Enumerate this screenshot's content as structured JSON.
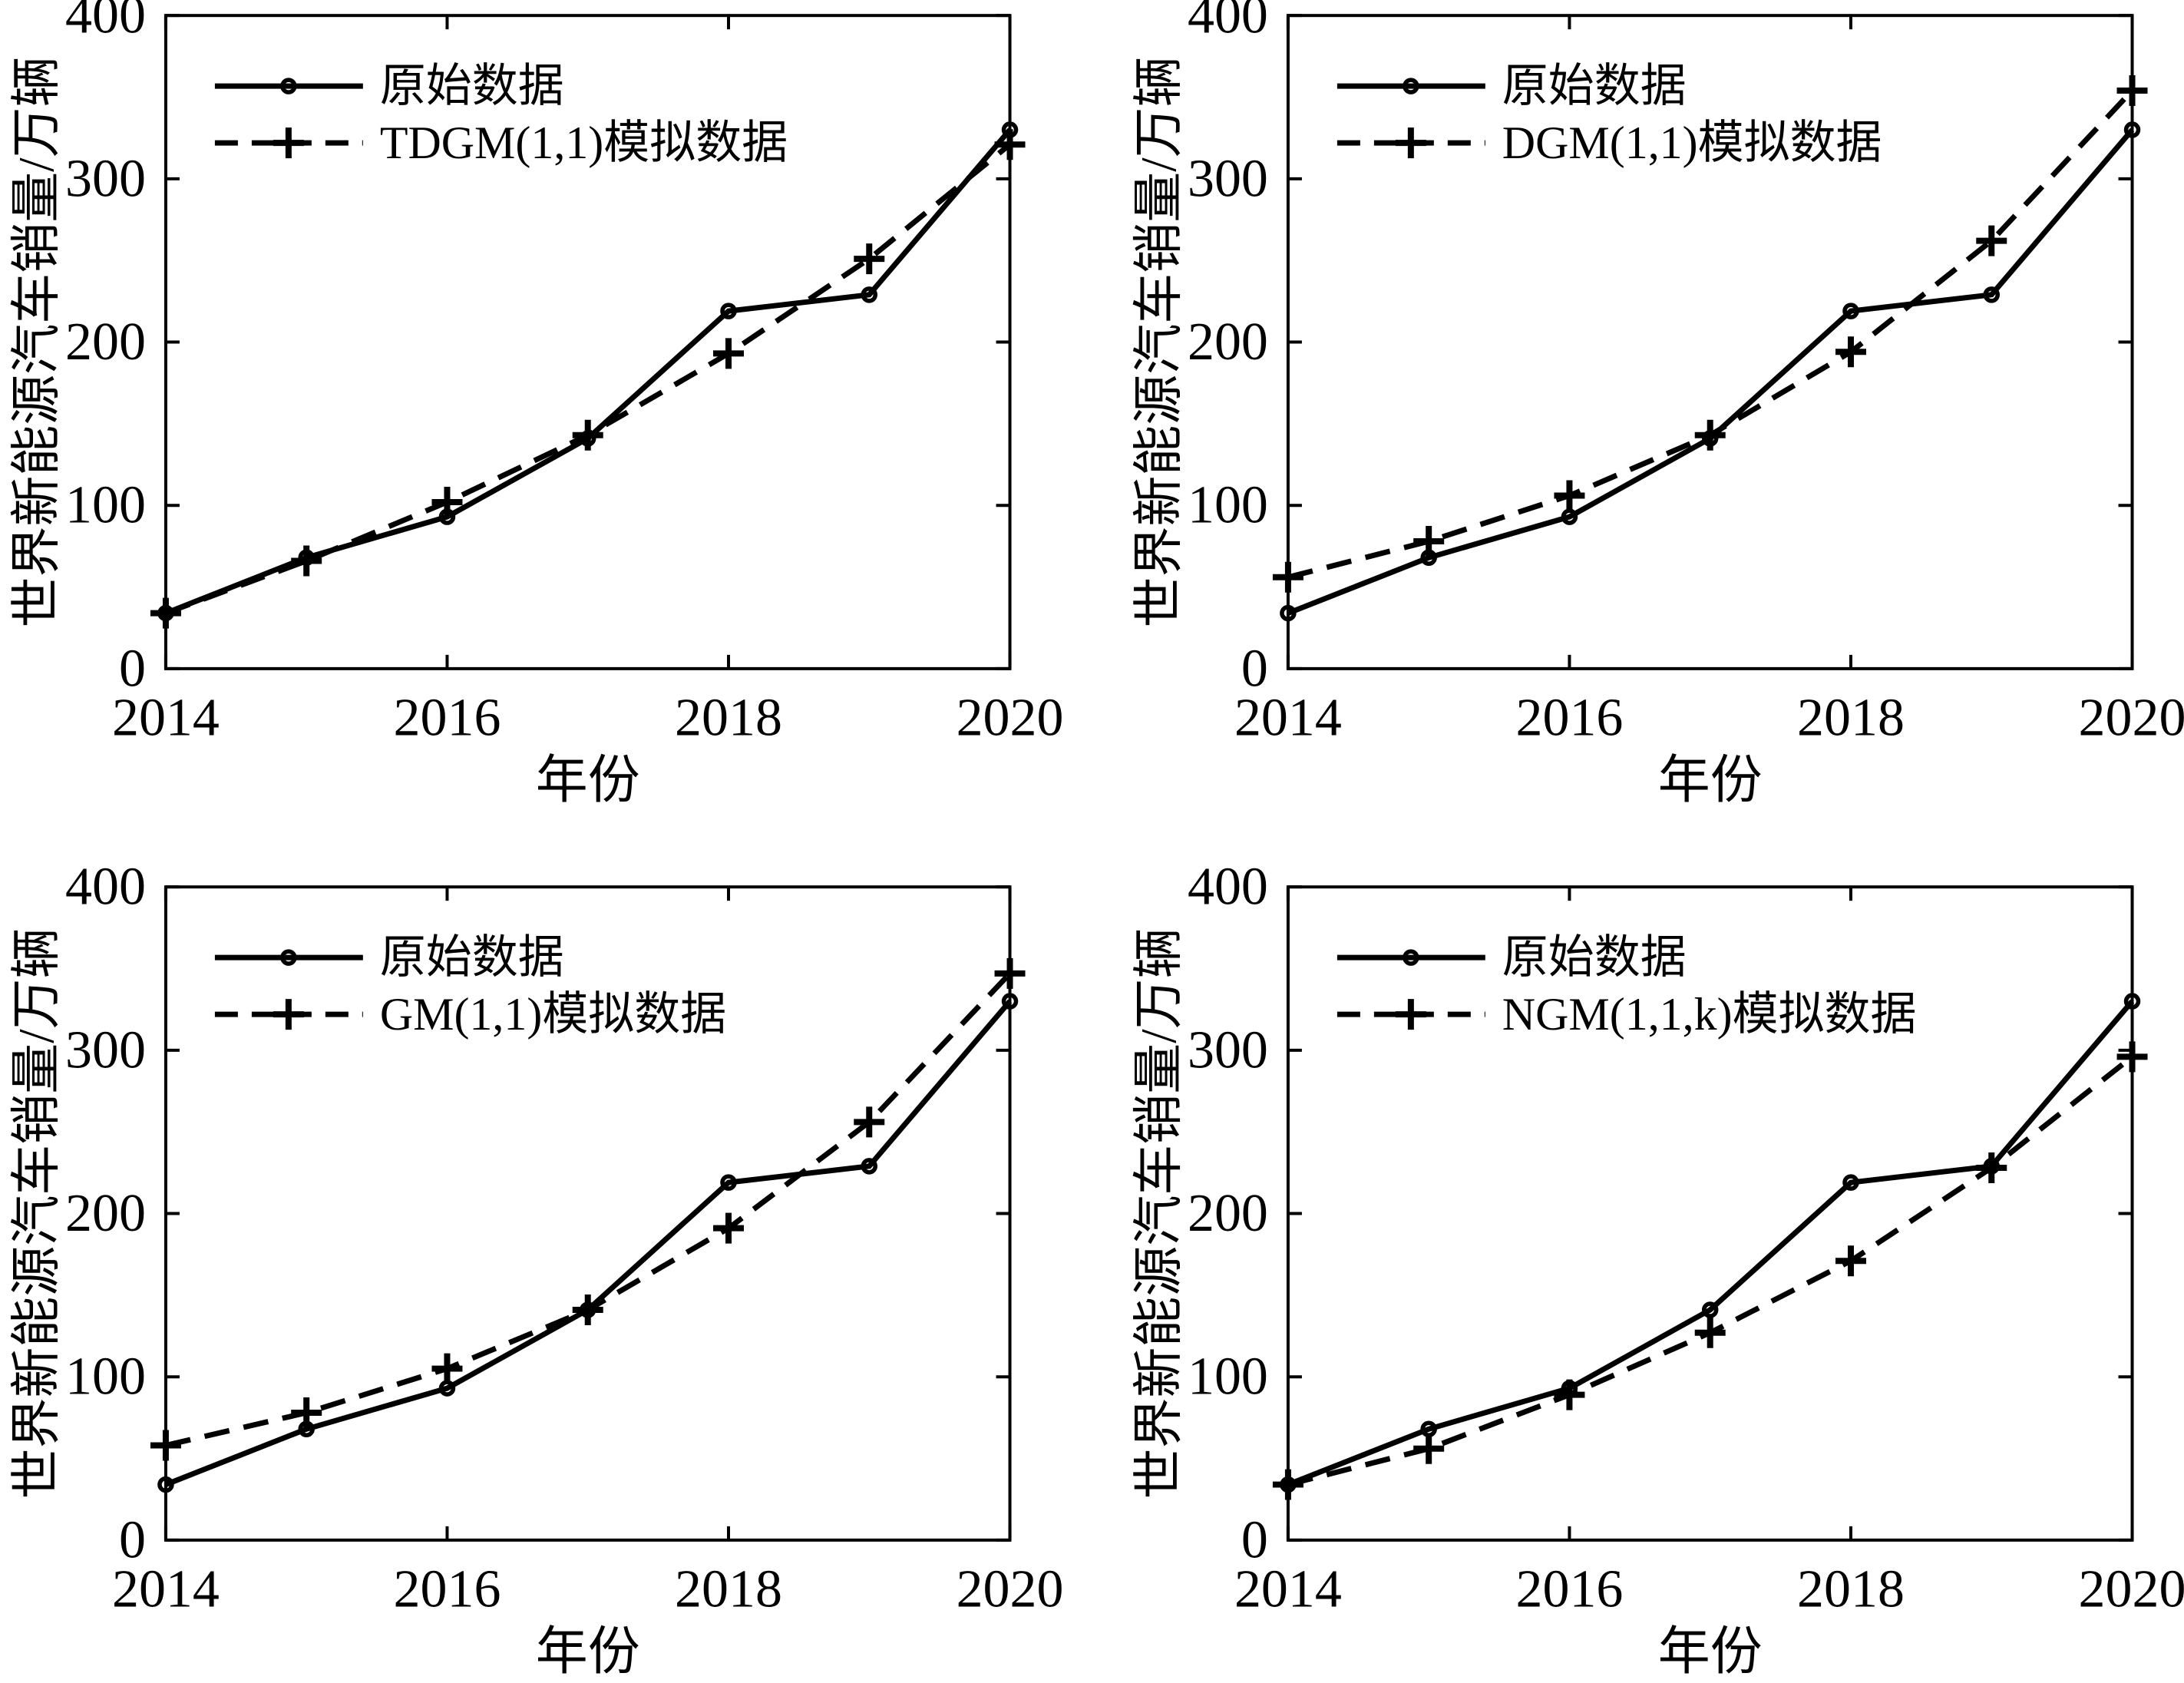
{
  "style": {
    "background": "#ffffff",
    "ink": "#000000"
  },
  "figure": {
    "x_label": "年份",
    "y_label": "世界新能源汽车销量/万辆",
    "legend_original_label": "原始数据"
  },
  "chart_data": [
    {
      "type": "line",
      "position": "top-left",
      "title": "",
      "xlabel": "年份",
      "ylabel": "世界新能源汽车销量/万辆",
      "x": [
        2014,
        2015,
        2016,
        2017,
        2018,
        2019,
        2020
      ],
      "x_ticks": [
        2014,
        2016,
        2018,
        2020
      ],
      "y_ticks": [
        0,
        100,
        200,
        300,
        400
      ],
      "xlim": [
        2014,
        2020
      ],
      "ylim": [
        0,
        400
      ],
      "grid": false,
      "legend_position": "upper-left",
      "series": [
        {
          "name": "原始数据",
          "line": "solid",
          "marker": "circle",
          "values": [
            34,
            68,
            93,
            141,
            219,
            229,
            330
          ]
        },
        {
          "name": "TDGM(1,1)模拟数据",
          "line": "dashed",
          "marker": "plus",
          "values": [
            34,
            66,
            102,
            143,
            193,
            251,
            321
          ]
        }
      ]
    },
    {
      "type": "line",
      "position": "top-right",
      "title": "",
      "xlabel": "年份",
      "ylabel": "世界新能源汽车销量/万辆",
      "x": [
        2014,
        2015,
        2016,
        2017,
        2018,
        2019,
        2020
      ],
      "x_ticks": [
        2014,
        2016,
        2018,
        2020
      ],
      "y_ticks": [
        0,
        100,
        200,
        300,
        400
      ],
      "xlim": [
        2014,
        2020
      ],
      "ylim": [
        0,
        400
      ],
      "grid": false,
      "legend_position": "upper-left",
      "series": [
        {
          "name": "原始数据",
          "line": "solid",
          "marker": "circle",
          "values": [
            34,
            68,
            93,
            141,
            219,
            229,
            330
          ]
        },
        {
          "name": "DGM(1,1)模拟数据",
          "line": "dashed",
          "marker": "plus",
          "values": [
            56,
            78,
            106,
            143,
            194,
            262,
            354
          ]
        }
      ]
    },
    {
      "type": "line",
      "position": "bottom-left",
      "title": "",
      "xlabel": "年份",
      "ylabel": "世界新能源汽车销量/万辆",
      "x": [
        2014,
        2015,
        2016,
        2017,
        2018,
        2019,
        2020
      ],
      "x_ticks": [
        2014,
        2016,
        2018,
        2020
      ],
      "y_ticks": [
        0,
        100,
        200,
        300,
        400
      ],
      "xlim": [
        2014,
        2020
      ],
      "ylim": [
        0,
        400
      ],
      "grid": false,
      "legend_position": "upper-left",
      "series": [
        {
          "name": "原始数据",
          "line": "solid",
          "marker": "circle",
          "values": [
            34,
            68,
            93,
            141,
            219,
            229,
            330
          ]
        },
        {
          "name": "GM(1,1)模拟数据",
          "line": "dashed",
          "marker": "plus",
          "values": [
            58,
            78,
            105,
            141,
            191,
            256,
            347
          ]
        }
      ]
    },
    {
      "type": "line",
      "position": "bottom-right",
      "title": "",
      "xlabel": "年份",
      "ylabel": "世界新能源汽车销量/万辆",
      "x": [
        2014,
        2015,
        2016,
        2017,
        2018,
        2019,
        2020
      ],
      "x_ticks": [
        2014,
        2016,
        2018,
        2020
      ],
      "y_ticks": [
        0,
        100,
        200,
        300,
        400
      ],
      "xlim": [
        2014,
        2020
      ],
      "ylim": [
        0,
        400
      ],
      "grid": false,
      "legend_position": "upper-left",
      "series": [
        {
          "name": "原始数据",
          "line": "solid",
          "marker": "circle",
          "values": [
            34,
            68,
            93,
            141,
            219,
            229,
            330
          ]
        },
        {
          "name": "NGM(1,1,k)模拟数据",
          "line": "dashed",
          "marker": "plus",
          "values": [
            34,
            56,
            89,
            127,
            171,
            228,
            296
          ]
        }
      ]
    }
  ]
}
